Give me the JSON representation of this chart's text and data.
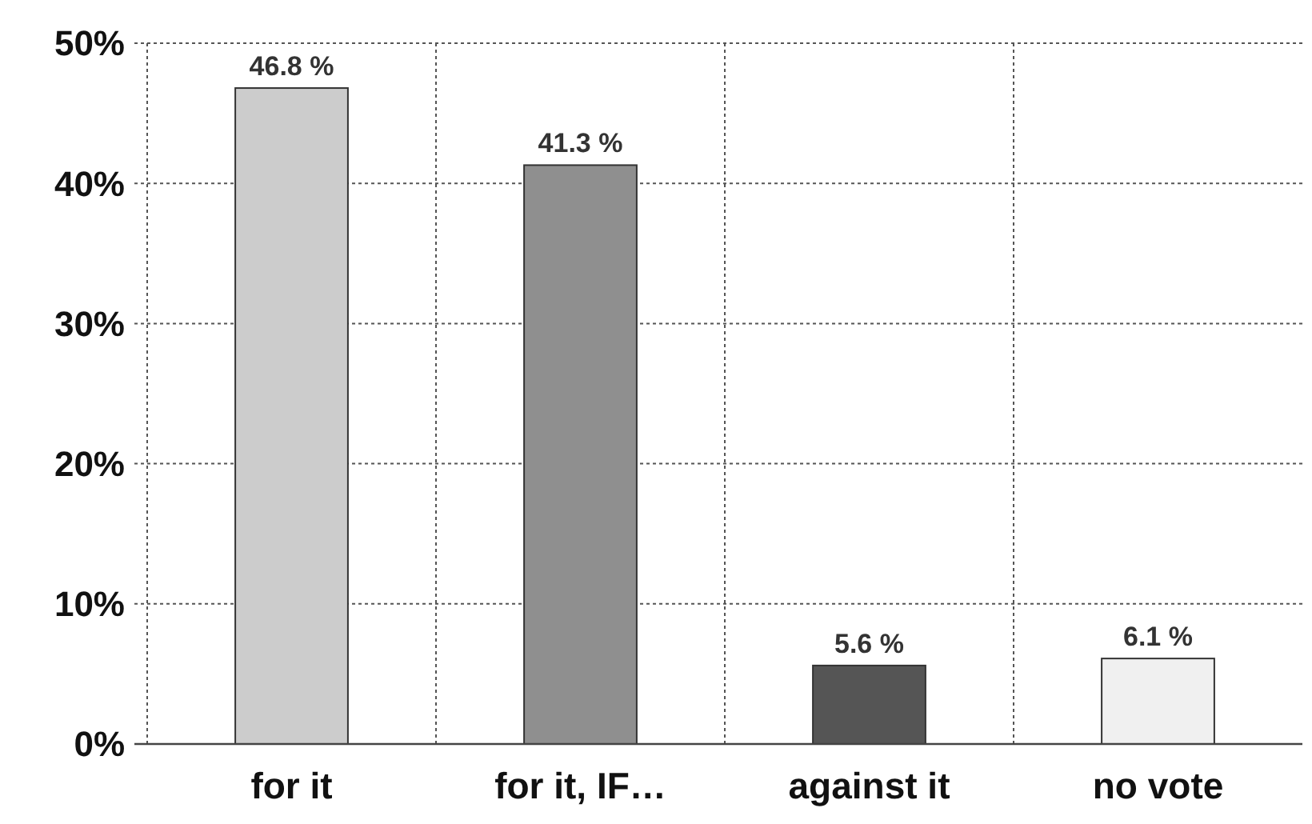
{
  "chart_data": {
    "type": "bar",
    "categories": [
      "for it",
      "for it, IF…",
      "against it",
      "no vote"
    ],
    "values": [
      46.8,
      41.3,
      5.6,
      6.1
    ],
    "colors": [
      "#cccccc",
      "#8f8f8f",
      "#555555",
      "#f0f0f0"
    ],
    "value_labels": [
      "46.8 %",
      "41.3 %",
      "5.6 %",
      "6.1 %"
    ],
    "ylim": [
      0,
      50
    ],
    "yticks": [
      {
        "value": 0,
        "label": "0%"
      },
      {
        "value": 10,
        "label": "10%"
      },
      {
        "value": 20,
        "label": "20%"
      },
      {
        "value": 30,
        "label": "30%"
      },
      {
        "value": 40,
        "label": "40%"
      },
      {
        "value": 50,
        "label": "50%"
      }
    ],
    "grid": true
  }
}
